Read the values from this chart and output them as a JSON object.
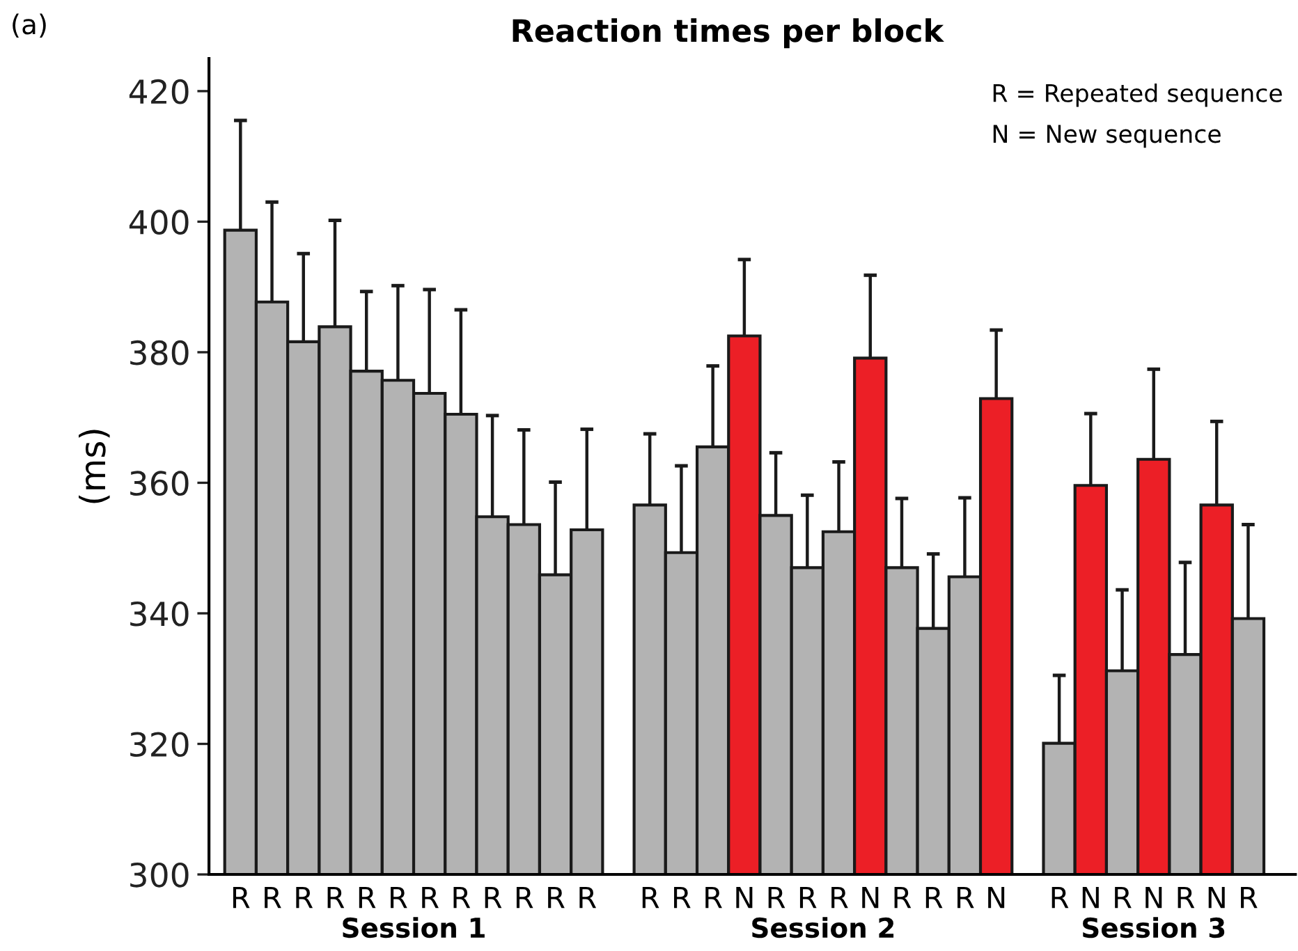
{
  "chart_data": {
    "type": "bar",
    "title": "Reaction times per block",
    "ylabel": "(ms)",
    "categories": [
      "R",
      "R",
      "R",
      "R",
      "R",
      "R",
      "R",
      "R",
      "R",
      "R",
      "R",
      "R",
      null,
      "R",
      "R",
      "R",
      "N",
      "R",
      "R",
      "R",
      "N",
      "R",
      "R",
      "R",
      "N",
      null,
      "R",
      "N",
      "R",
      "N",
      "R",
      "N",
      "R"
    ],
    "values": [
      398.7,
      387.7,
      381.6,
      383.9,
      377.1,
      375.7,
      373.7,
      370.5,
      354.8,
      353.6,
      345.9,
      352.8,
      null,
      356.6,
      349.3,
      365.5,
      382.5,
      355,
      347,
      352.5,
      379.1,
      347,
      337.7,
      345.6,
      372.9,
      null,
      320.1,
      359.6,
      331.2,
      363.6,
      333.7,
      356.6,
      339.2
    ],
    "errors": [
      [
        398.7,
        415.5
      ],
      [
        387.7,
        403
      ],
      [
        381.6,
        395.1
      ],
      [
        383.9,
        400.2
      ],
      [
        377.1,
        389.3
      ],
      [
        375.7,
        390.2
      ],
      [
        373.7,
        389.6
      ],
      [
        370.5,
        386.5
      ],
      [
        354.8,
        370.3
      ],
      [
        353.6,
        368.1
      ],
      [
        345.9,
        360.1
      ],
      [
        352.8,
        368.2
      ],
      null,
      [
        356.6,
        367.5
      ],
      [
        349.3,
        362.6
      ],
      [
        365.5,
        377.9
      ],
      [
        382.5,
        394.2
      ],
      [
        355,
        364.6
      ],
      [
        347,
        358.1
      ],
      [
        352.5,
        363.2
      ],
      [
        379.1,
        391.8
      ],
      [
        347,
        357.6
      ],
      [
        337.7,
        349.1
      ],
      [
        345.6,
        357.7
      ],
      [
        372.9,
        383.4
      ],
      null,
      [
        320.1,
        330.5
      ],
      [
        359.6,
        370.6
      ],
      [
        331.2,
        343.6
      ],
      [
        363.6,
        377.4
      ],
      [
        333.7,
        347.8
      ],
      [
        356.6,
        369.4
      ],
      [
        339.2,
        353.6
      ]
    ],
    "colors": [
      "#b3b3b3",
      "#b3b3b3",
      "#b3b3b3",
      "#b3b3b3",
      "#b3b3b3",
      "#b3b3b3",
      "#b3b3b3",
      "#b3b3b3",
      "#b3b3b3",
      "#b3b3b3",
      "#b3b3b3",
      "#b3b3b3",
      null,
      "#b3b3b3",
      "#b3b3b3",
      "#b3b3b3",
      "#ec1f26",
      "#b3b3b3",
      "#b3b3b3",
      "#b3b3b3",
      "#ec1f26",
      "#b3b3b3",
      "#b3b3b3",
      "#b3b3b3",
      "#ec1f26",
      null,
      "#b3b3b3",
      "#ec1f26",
      "#b3b3b3",
      "#ec1f26",
      "#b3b3b3",
      "#ec1f26",
      "#b3b3b3"
    ],
    "ylim": [
      300,
      425
    ],
    "yticks": [
      300,
      320,
      340,
      360,
      380,
      400,
      420
    ],
    "grid": false,
    "annotations": [
      "(a)",
      "R = Repeated sequence",
      "N = New sequence",
      "Session 1",
      "Session 2",
      "Session 3"
    ]
  }
}
